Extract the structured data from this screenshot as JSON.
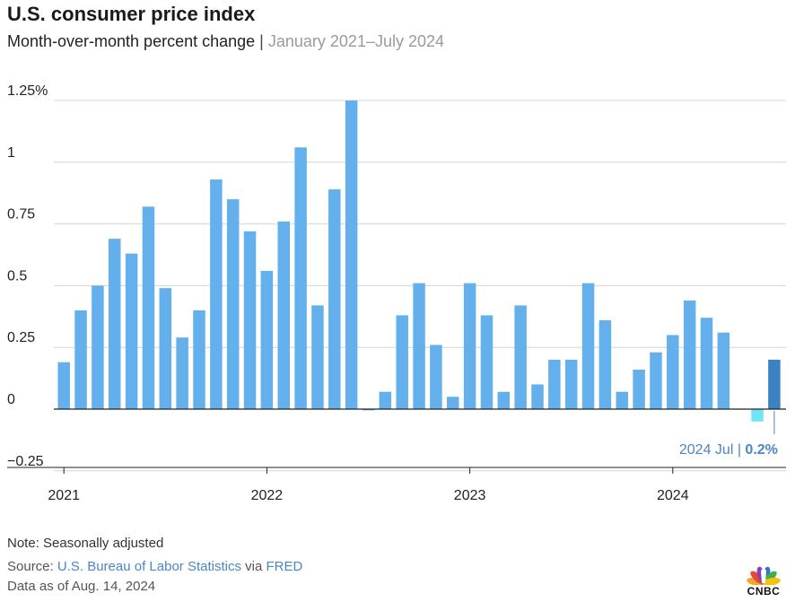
{
  "header": {
    "title": "U.S. consumer price index",
    "subtitle_main": "Month-over-month percent change",
    "subtitle_sep": "|",
    "subtitle_range": "January 2021–July 2024"
  },
  "chart_data": {
    "type": "bar",
    "title": "U.S. consumer price index",
    "subtitle": "Month-over-month percent change | January 2021–July 2024",
    "xlabel": "",
    "ylabel": "",
    "ylim": [
      -0.25,
      1.25
    ],
    "yticks": [
      {
        "value": 1.25,
        "label": "1.25%"
      },
      {
        "value": 1,
        "label": "1"
      },
      {
        "value": 0.75,
        "label": "0.75"
      },
      {
        "value": 0.5,
        "label": "0.5"
      },
      {
        "value": 0.25,
        "label": "0.25"
      },
      {
        "value": 0,
        "label": "0"
      },
      {
        "value": -0.25,
        "label": "−0.25"
      }
    ],
    "xticks": [
      {
        "index": 0,
        "label": "2021"
      },
      {
        "index": 12,
        "label": "2022"
      },
      {
        "index": 24,
        "label": "2023"
      },
      {
        "index": 36,
        "label": "2024"
      }
    ],
    "categories": [
      "2021 Jan",
      "2021 Feb",
      "2021 Mar",
      "2021 Apr",
      "2021 May",
      "2021 Jun",
      "2021 Jul",
      "2021 Aug",
      "2021 Sep",
      "2021 Oct",
      "2021 Nov",
      "2021 Dec",
      "2022 Jan",
      "2022 Feb",
      "2022 Mar",
      "2022 Apr",
      "2022 May",
      "2022 Jun",
      "2022 Jul",
      "2022 Aug",
      "2022 Sep",
      "2022 Oct",
      "2022 Nov",
      "2022 Dec",
      "2023 Jan",
      "2023 Feb",
      "2023 Mar",
      "2023 Apr",
      "2023 May",
      "2023 Jun",
      "2023 Jul",
      "2023 Aug",
      "2023 Sep",
      "2023 Oct",
      "2023 Nov",
      "2023 Dec",
      "2024 Jan",
      "2024 Feb",
      "2024 Mar",
      "2024 Apr",
      "2024 May",
      "2024 Jun",
      "2024 Jul"
    ],
    "values": [
      0.19,
      0.4,
      0.5,
      0.69,
      0.63,
      0.82,
      0.49,
      0.29,
      0.4,
      0.93,
      0.85,
      0.72,
      0.56,
      0.76,
      1.06,
      0.42,
      0.89,
      1.25,
      -0.005,
      0.07,
      0.38,
      0.51,
      0.26,
      0.05,
      0.51,
      0.38,
      0.07,
      0.42,
      0.1,
      0.2,
      0.2,
      0.51,
      0.36,
      0.07,
      0.16,
      0.23,
      0.3,
      0.44,
      0.37,
      0.31,
      0.0,
      -0.05,
      0.2
    ],
    "colors": {
      "default": "#64b0ec",
      "negative": "#6fe6f5",
      "highlight": "#3a82c4",
      "grid": "#d4d4d4",
      "axis": "#222222",
      "annotation": "#4a87c2"
    },
    "annotation": {
      "index": 42,
      "label": "2024 Jul",
      "sep": "|",
      "value_label": "0.2%"
    }
  },
  "footer": {
    "note": "Note: Seasonally adjusted",
    "source_prefix": "Source: ",
    "source_bls": "U.S. Bureau of Labor Statistics",
    "source_via": " via ",
    "source_fred": "FRED",
    "asof": "Data as of Aug. 14, 2024"
  },
  "logo": {
    "text": "CNBC",
    "icon": "peacock-icon",
    "feather_colors": [
      "#f5a623",
      "#e8493f",
      "#8b3fb5",
      "#3a6fd1",
      "#3bb34a",
      "#f4c20d"
    ]
  }
}
